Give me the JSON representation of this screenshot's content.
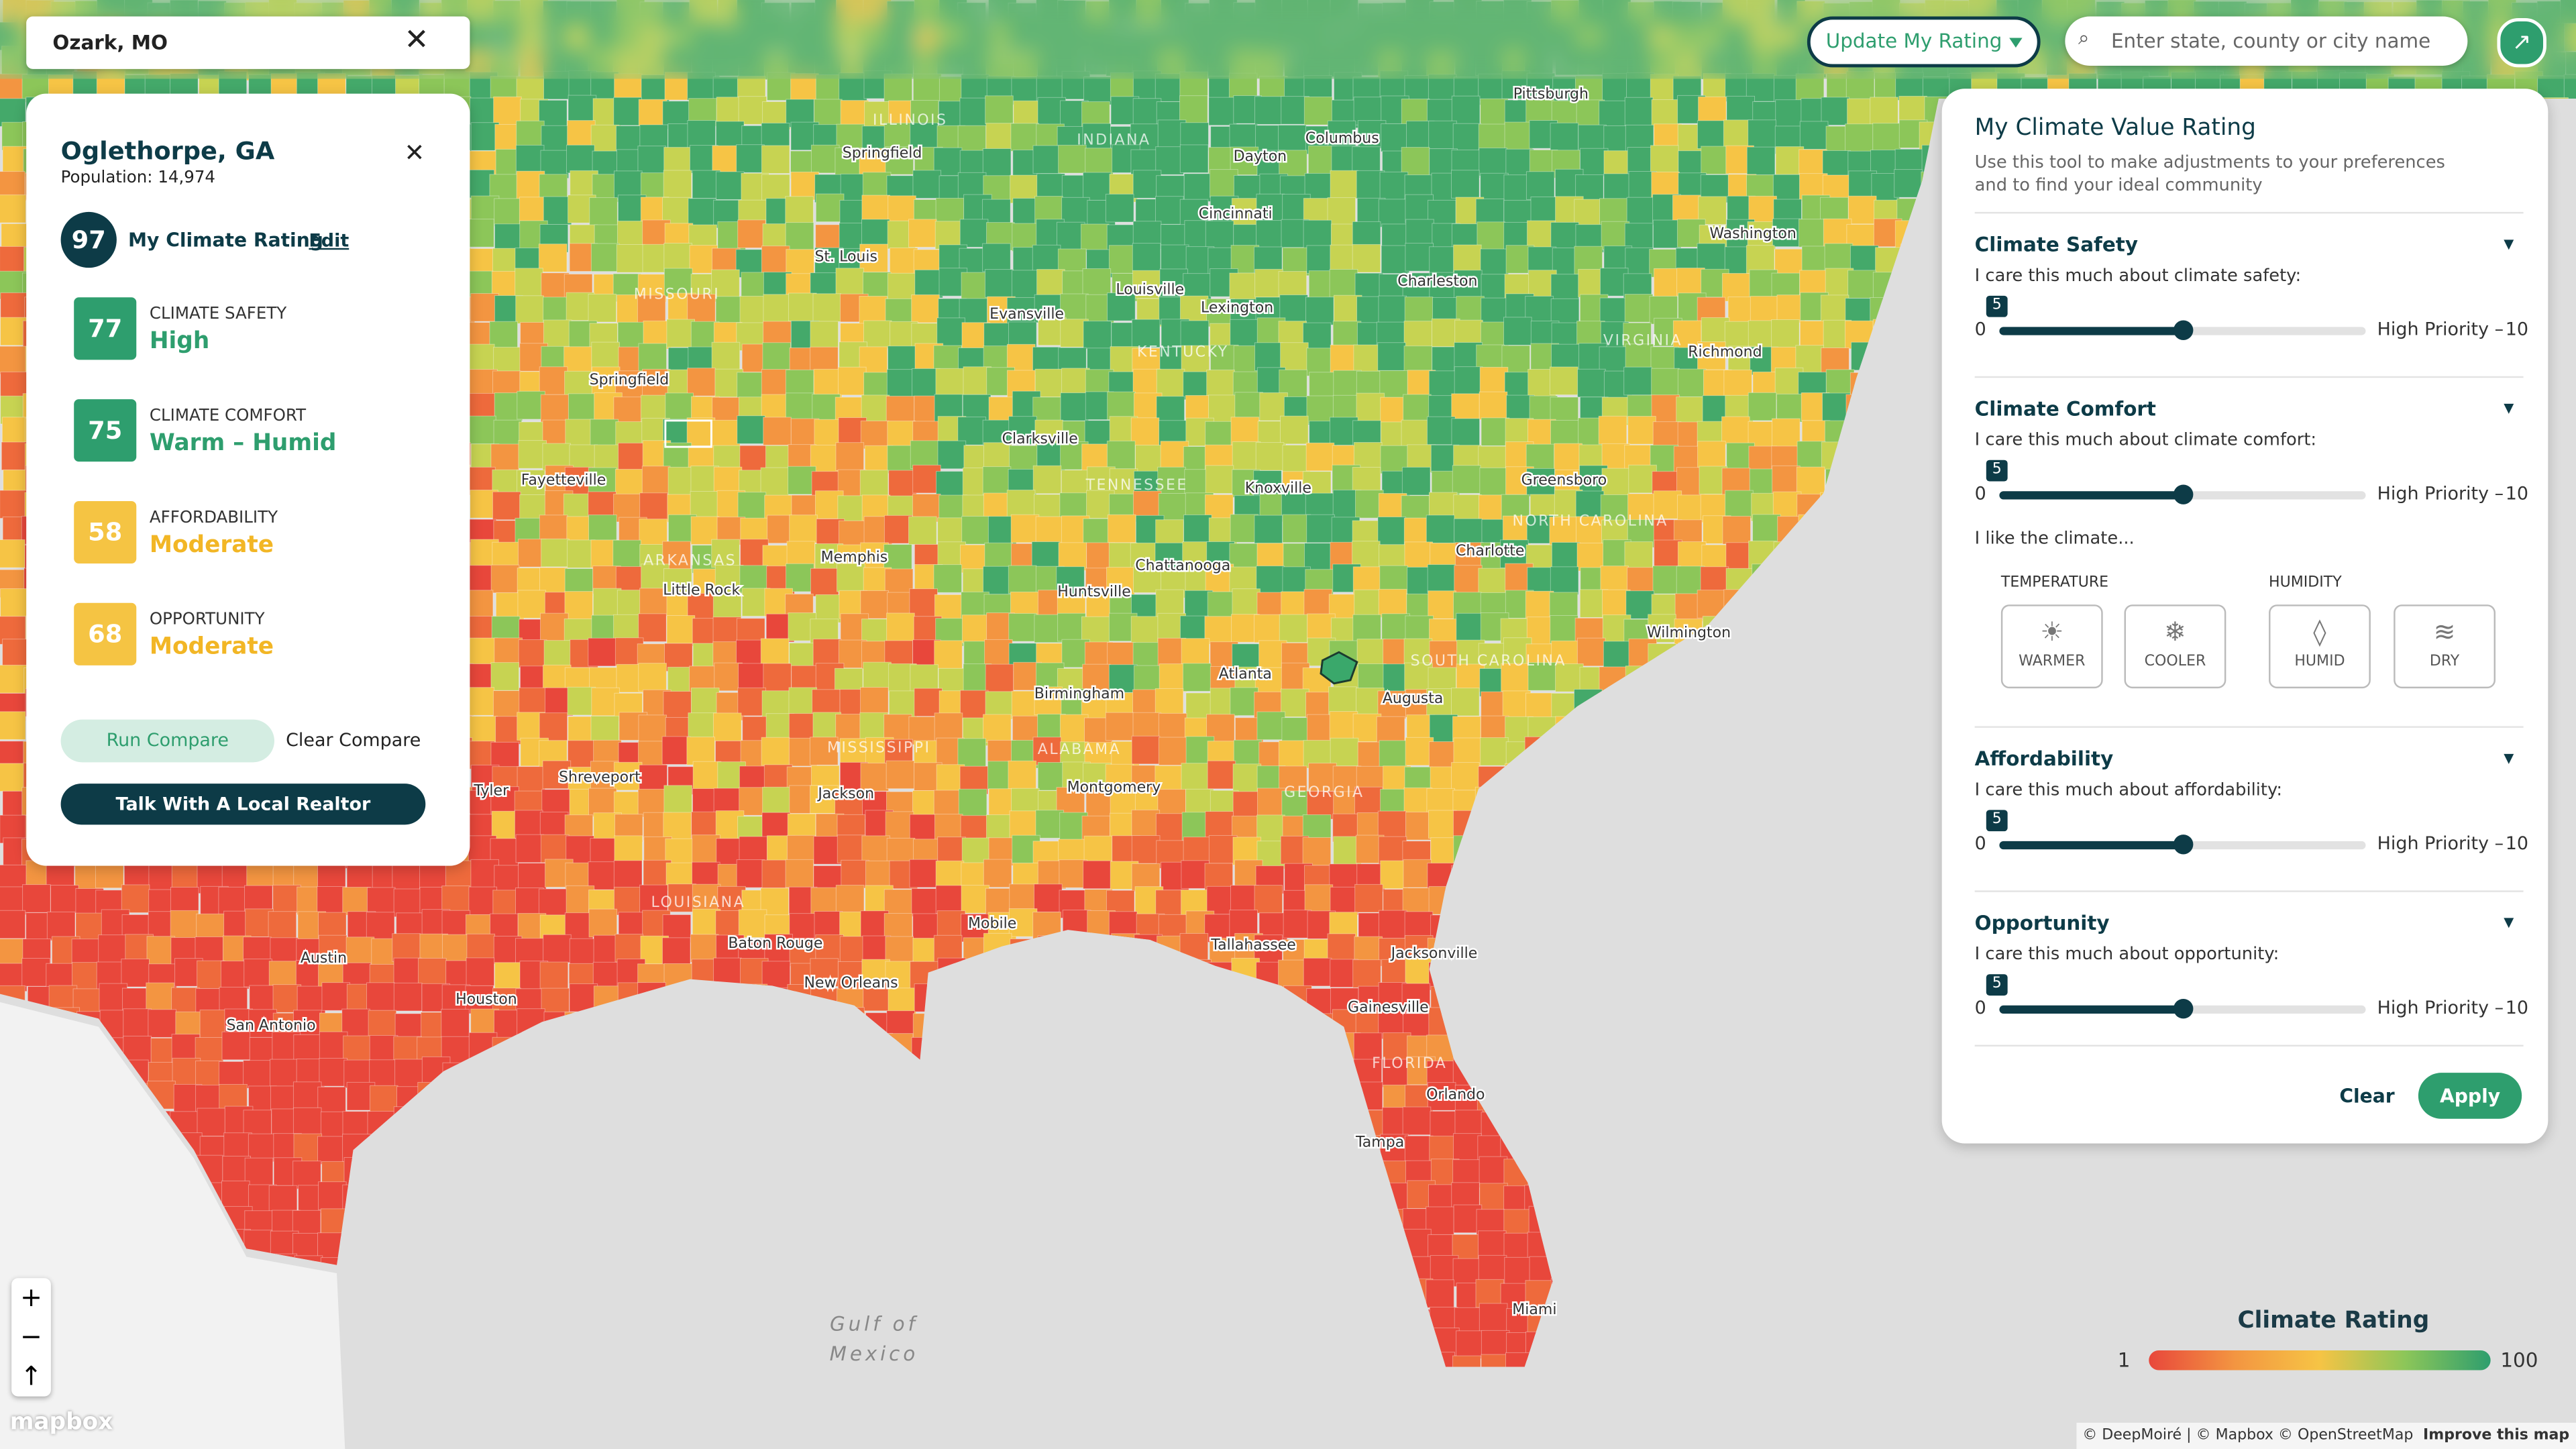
{
  "search": {
    "location": "Ozark, MO",
    "placeholder": "Enter state, county or city name"
  },
  "header": {
    "update_button": "Update My Rating"
  },
  "county": {
    "name": "Oglethorpe, GA",
    "population": "Population: 14,974",
    "rating": 97,
    "rating_label": "My Climate Rating",
    "edit": "Edit",
    "metrics": [
      {
        "score": 77,
        "name": "CLIMATE SAFETY",
        "level": "High",
        "color": "#2e9e6e"
      },
      {
        "score": 75,
        "name": "CLIMATE COMFORT",
        "level": "Warm – Humid",
        "color": "#2e9e6e"
      },
      {
        "score": 58,
        "name": "AFFORDABILITY",
        "level": "Moderate",
        "color": "#f5c443"
      },
      {
        "score": 68,
        "name": "OPPORTUNITY",
        "level": "Moderate",
        "color": "#f5c443"
      }
    ],
    "run_compare": "Run Compare",
    "clear_compare": "Clear Compare",
    "realtor": "Talk With A Local Realtor"
  },
  "panel": {
    "title": "My Climate Value Rating",
    "subtitle": "Use this tool to make adjustments to your preferences and to find your ideal community",
    "min": 0,
    "max": 10,
    "max_label": "High Priority –",
    "sections": [
      {
        "title": "Climate Safety",
        "prompt": "I care this much about climate safety:",
        "value": 5
      },
      {
        "title": "Climate Comfort",
        "prompt": "I care this much about climate comfort:",
        "value": 5
      },
      {
        "title": "Affordability",
        "prompt": "I care this much about affordability:",
        "value": 5
      },
      {
        "title": "Opportunity",
        "prompt": "I care this much about opportunity:",
        "value": 5
      }
    ],
    "climate_prompt": "I like the climate...",
    "temperature": "TEMPERATURE",
    "humidity": "HUMIDITY",
    "options": [
      "WARMER",
      "COOLER",
      "HUMID",
      "DRY"
    ],
    "clear": "Clear",
    "apply": "Apply"
  },
  "legend": {
    "title": "Climate Rating",
    "min": 1,
    "max": 100
  },
  "map": {
    "labels": [
      "Pittsburgh",
      "Columbus",
      "Springfield",
      "Dayton",
      "Cincinnati",
      "Washington",
      "Louisville",
      "Lexington",
      "Charleston",
      "St. Louis",
      "Evansville",
      "Richmond",
      "Springfield",
      "Clarksville",
      "Knoxville",
      "Greensboro",
      "Memphis",
      "Little Rock",
      "Charlotte",
      "Chattanooga",
      "Huntsville",
      "Atlanta",
      "Birmingham",
      "Augusta",
      "Jackson",
      "Montgomery",
      "Shreveport",
      "Tyler",
      "Baton Rouge",
      "New Orleans",
      "Mobile",
      "Tallahassee",
      "Jacksonville",
      "Houston",
      "Austin",
      "San Antonio",
      "Orlando",
      "Tampa",
      "Miami",
      "Gainesville",
      "Wilmington",
      "Fayetteville"
    ],
    "states": [
      "ILLINOIS",
      "INDIANA",
      "MISSOURI",
      "KENTUCKY",
      "TENNESSEE",
      "ARKANSAS",
      "VIRGINIA",
      "NORTH CAROLINA",
      "SOUTH CAROLINA",
      "MISSISSIPPI",
      "ALABAMA",
      "GEORGIA",
      "LOUISIANA",
      "FLORIDA"
    ],
    "gulf": [
      "Gulf of",
      "Mexico"
    ],
    "logo": "mapbox",
    "attribution": "© DeepMoiré | © Mapbox © OpenStreetMap",
    "improve": "Improve this map"
  }
}
